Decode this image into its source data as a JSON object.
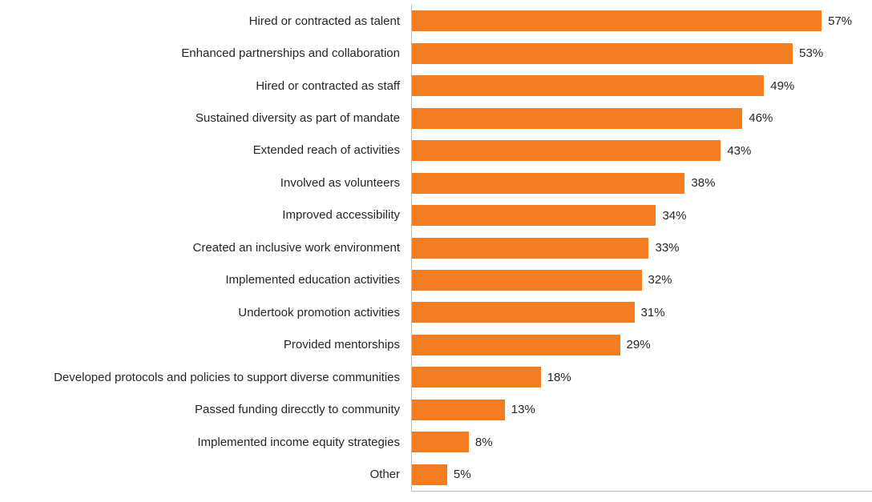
{
  "chart_data": {
    "type": "bar",
    "orientation": "horizontal",
    "title": "",
    "xlabel": "",
    "ylabel": "",
    "categories": [
      "Hired or contracted as talent",
      "Enhanced partnerships and collaboration",
      "Hired or contracted as staff",
      "Sustained diversity as part of mandate",
      "Extended reach of activities",
      "Involved as volunteers",
      "Improved accessibility",
      "Created an inclusive work environment",
      "Implemented education activities",
      "Undertook promotion activities",
      "Provided mentorships",
      "Developed protocols and policies to support diverse communities",
      "Passed funding direcctly to community",
      "Implemented income equity strategies",
      "Other"
    ],
    "values": [
      57,
      53,
      49,
      46,
      43,
      38,
      34,
      33,
      32,
      31,
      29,
      18,
      13,
      8,
      5
    ],
    "value_suffix": "%",
    "xlim": [
      0,
      64
    ],
    "bar_color": "#F47D21",
    "axis_color": "#BFBFBF",
    "text_color": "#262626",
    "grid": false,
    "legend": false,
    "data_labels": true
  }
}
